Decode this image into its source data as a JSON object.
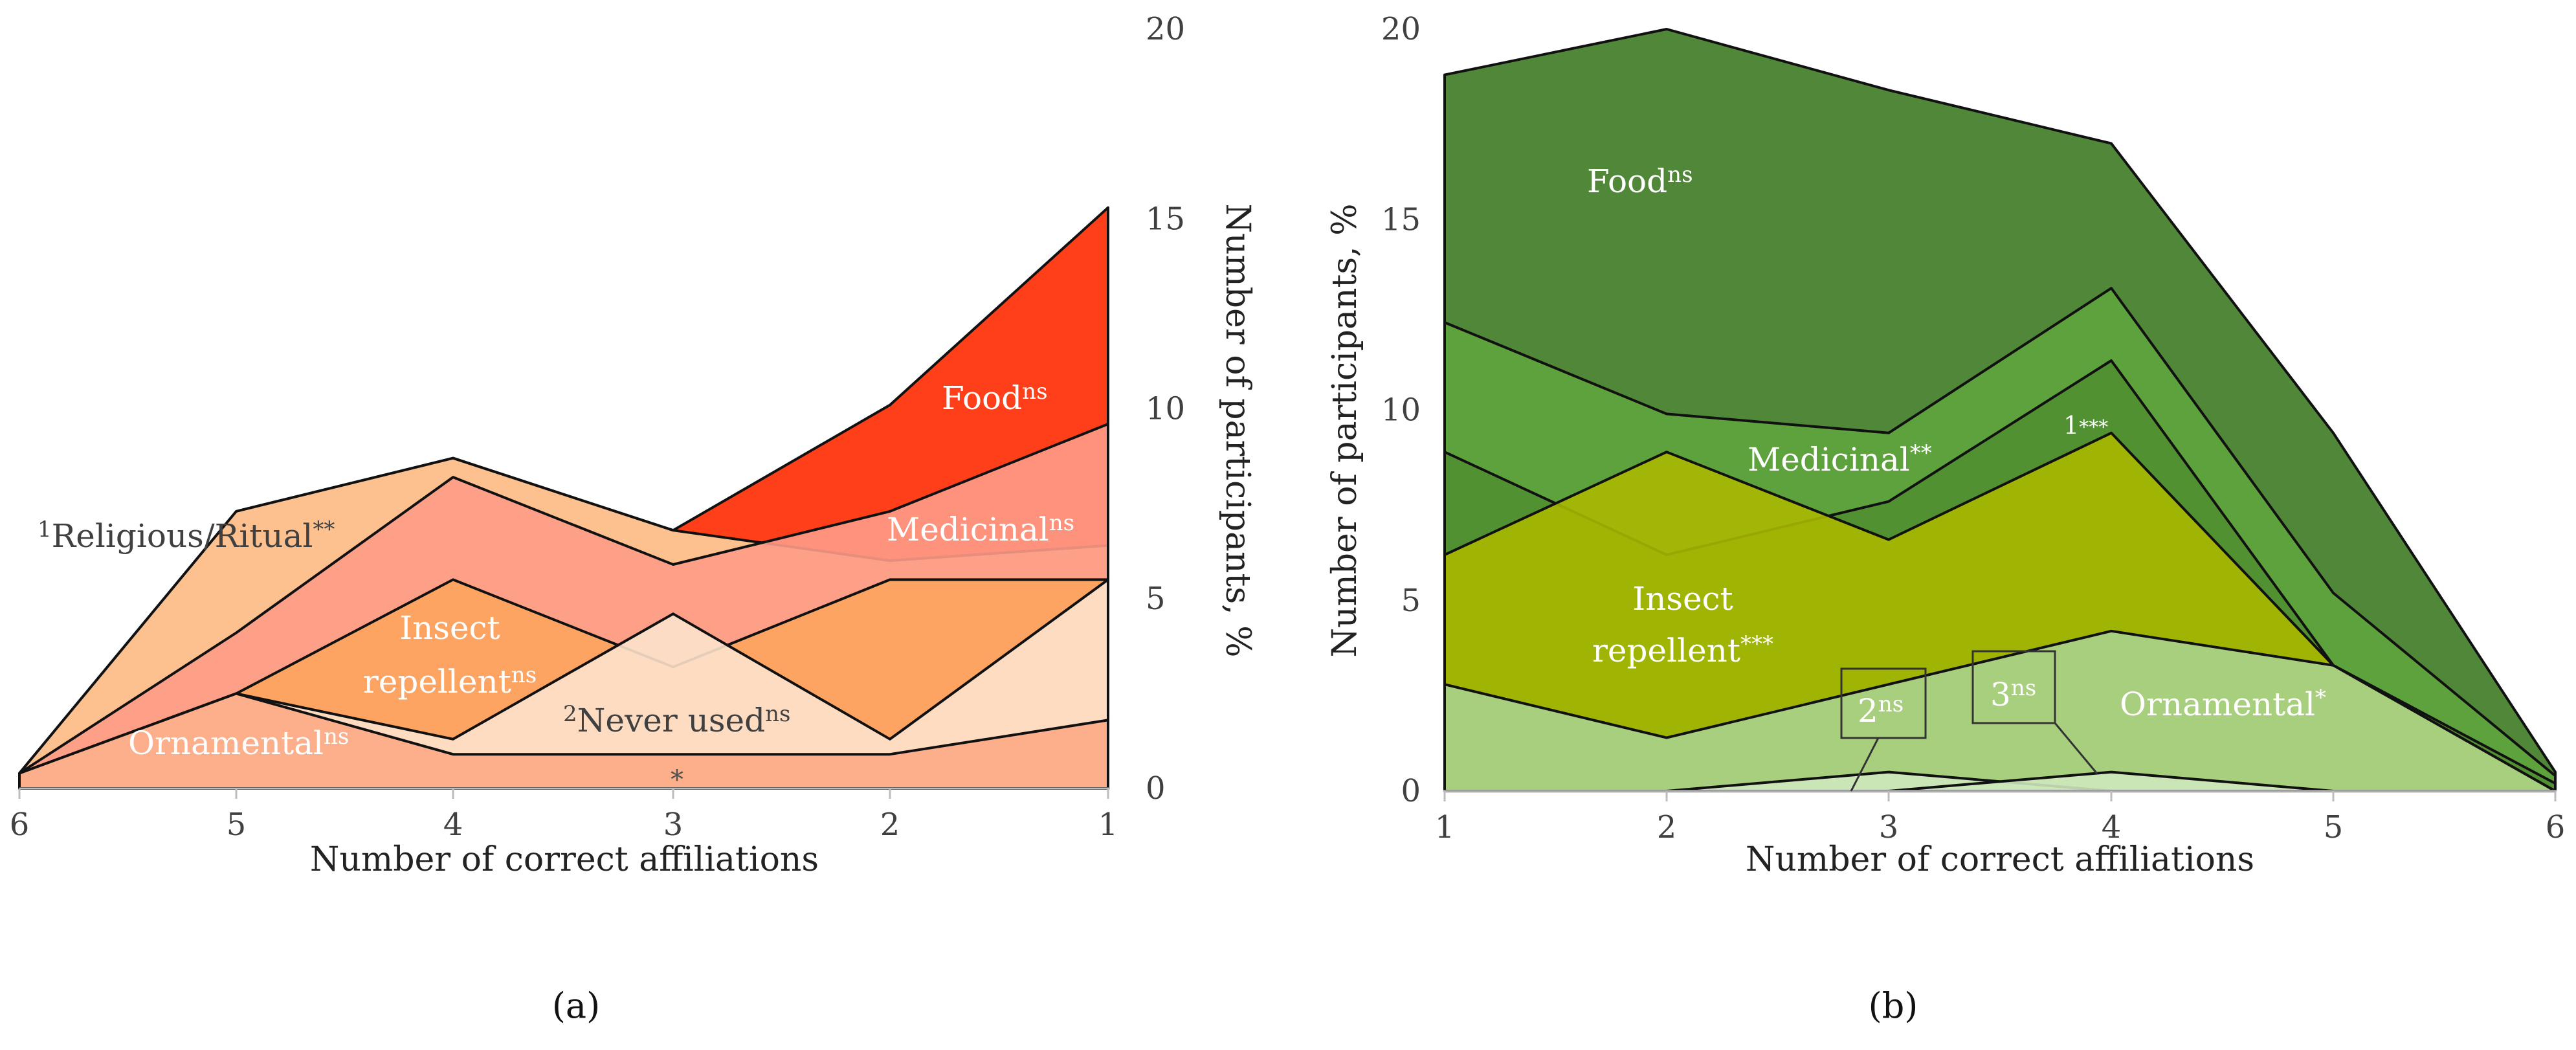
{
  "chart_data": [
    {
      "panel": "(a)",
      "type": "area",
      "xlabel": "Number of correct affiliations",
      "ylabel": "Number of participants, %",
      "x": [
        6,
        5,
        4,
        3,
        2,
        1
      ],
      "xticks": [
        "6",
        "5",
        "4",
        "3",
        "2",
        "1"
      ],
      "yticks": [
        "0",
        "5",
        "10",
        "15",
        "20"
      ],
      "ylim": [
        0,
        20
      ],
      "y_axis_side": "right",
      "series": [
        {
          "name": "Food",
          "sig": "ns",
          "values": [
            0.4,
            7.3,
            8.7,
            6.8,
            10.1,
            15.3
          ],
          "color": "#ff2a00"
        },
        {
          "name": "Religious/Ritual",
          "prefix": "1",
          "sig": "**",
          "values": [
            0.4,
            7.3,
            8.7,
            6.8,
            6.0,
            6.4
          ],
          "color": "#fdcf9d"
        },
        {
          "name": "Medicinal",
          "sig": "ns",
          "values": [
            0.4,
            4.1,
            8.2,
            5.9,
            7.3,
            9.6
          ],
          "color": "#fe9b87"
        },
        {
          "name": "Insect repellent",
          "sig": "ns",
          "values": [
            0.4,
            2.5,
            5.5,
            3.2,
            5.5,
            5.5
          ],
          "color": "#fda45e"
        },
        {
          "name": "Never used",
          "prefix": "2",
          "sig": "ns",
          "values": [
            0.4,
            2.5,
            1.3,
            4.6,
            1.3,
            5.5
          ],
          "color": "#fde2cd"
        },
        {
          "name": "Ornamental",
          "sig": "ns",
          "values": [
            0.4,
            2.5,
            0.9,
            0.9,
            0.9,
            1.8
          ],
          "color": "#fcaa84"
        }
      ],
      "annotations": [
        "*"
      ]
    },
    {
      "panel": "(b)",
      "type": "area",
      "xlabel": "Number of correct affiliations",
      "ylabel": "Number of participants, %",
      "x": [
        1,
        2,
        3,
        4,
        5,
        6
      ],
      "xticks": [
        "1",
        "2",
        "3",
        "4",
        "5",
        "6"
      ],
      "yticks": [
        "0",
        "5",
        "10",
        "15",
        "20"
      ],
      "ylim": [
        0,
        20
      ],
      "y_axis_side": "left",
      "series": [
        {
          "name": "Food",
          "sig": "ns",
          "values": [
            18.8,
            20.0,
            18.4,
            17.0,
            9.4,
            0.5
          ],
          "color": "#3d7a23"
        },
        {
          "name": "Medicinal",
          "sig": "**",
          "values": [
            12.3,
            9.9,
            9.4,
            13.2,
            5.2,
            0.4
          ],
          "color": "#5fa53e"
        },
        {
          "name": "1",
          "sig": "***",
          "values": [
            8.9,
            6.2,
            7.6,
            11.3,
            3.3,
            0.2
          ],
          "color": "#508f30"
        },
        {
          "name": "Insect repellent",
          "sig": "***",
          "values": [
            6.2,
            8.9,
            6.6,
            9.4,
            3.3,
            0.0
          ],
          "color": "#a9b800"
        },
        {
          "name": "Ornamental",
          "sig": "*",
          "values": [
            2.8,
            1.4,
            2.8,
            4.2,
            3.3,
            0.0
          ],
          "color": "#a8d18c"
        },
        {
          "name": "2",
          "sig": "ns",
          "values": [
            0.0,
            0.0,
            0.5,
            0.0,
            0.0,
            0.0
          ],
          "color": "#cde7bd"
        },
        {
          "name": "3",
          "sig": "ns",
          "values": [
            0.0,
            0.0,
            0.0,
            0.5,
            0.0,
            0.0
          ],
          "color": "#cde7bd"
        }
      ]
    }
  ],
  "labels": {
    "a": {
      "food": {
        "text": "Food",
        "sup": "ns"
      },
      "religious": {
        "pre": "1",
        "text": "Religious/Ritual",
        "sup": "**"
      },
      "medicinal": {
        "text": "Medicinal",
        "sup": "ns"
      },
      "insect_line1": "Insect",
      "insect_line2": {
        "text": "repellent",
        "sup": "ns"
      },
      "never": {
        "pre": "2",
        "text": "Never used",
        "sup": "ns"
      },
      "ornamental": {
        "text": "Ornamental",
        "sup": "ns"
      },
      "star": "*",
      "panel_label": "(a)",
      "xlabel": "Number of correct affiliations",
      "ylabel": "Number of participants, %"
    },
    "b": {
      "food": {
        "text": "Food",
        "sup": "ns"
      },
      "medicinal": {
        "text": "Medicinal",
        "sup": "**"
      },
      "one": {
        "text": "1",
        "sup": "***"
      },
      "insect_line1": "Insect",
      "insect_line2": {
        "text": "repellent",
        "sup": "***"
      },
      "ornamental": {
        "text": "Ornamental",
        "sup": "*"
      },
      "two": {
        "text": "2",
        "sup": "ns"
      },
      "three": {
        "text": "3",
        "sup": "ns"
      },
      "panel_label": "(b)",
      "xlabel": "Number of correct affiliations",
      "ylabel": "Number of participants, %"
    }
  }
}
